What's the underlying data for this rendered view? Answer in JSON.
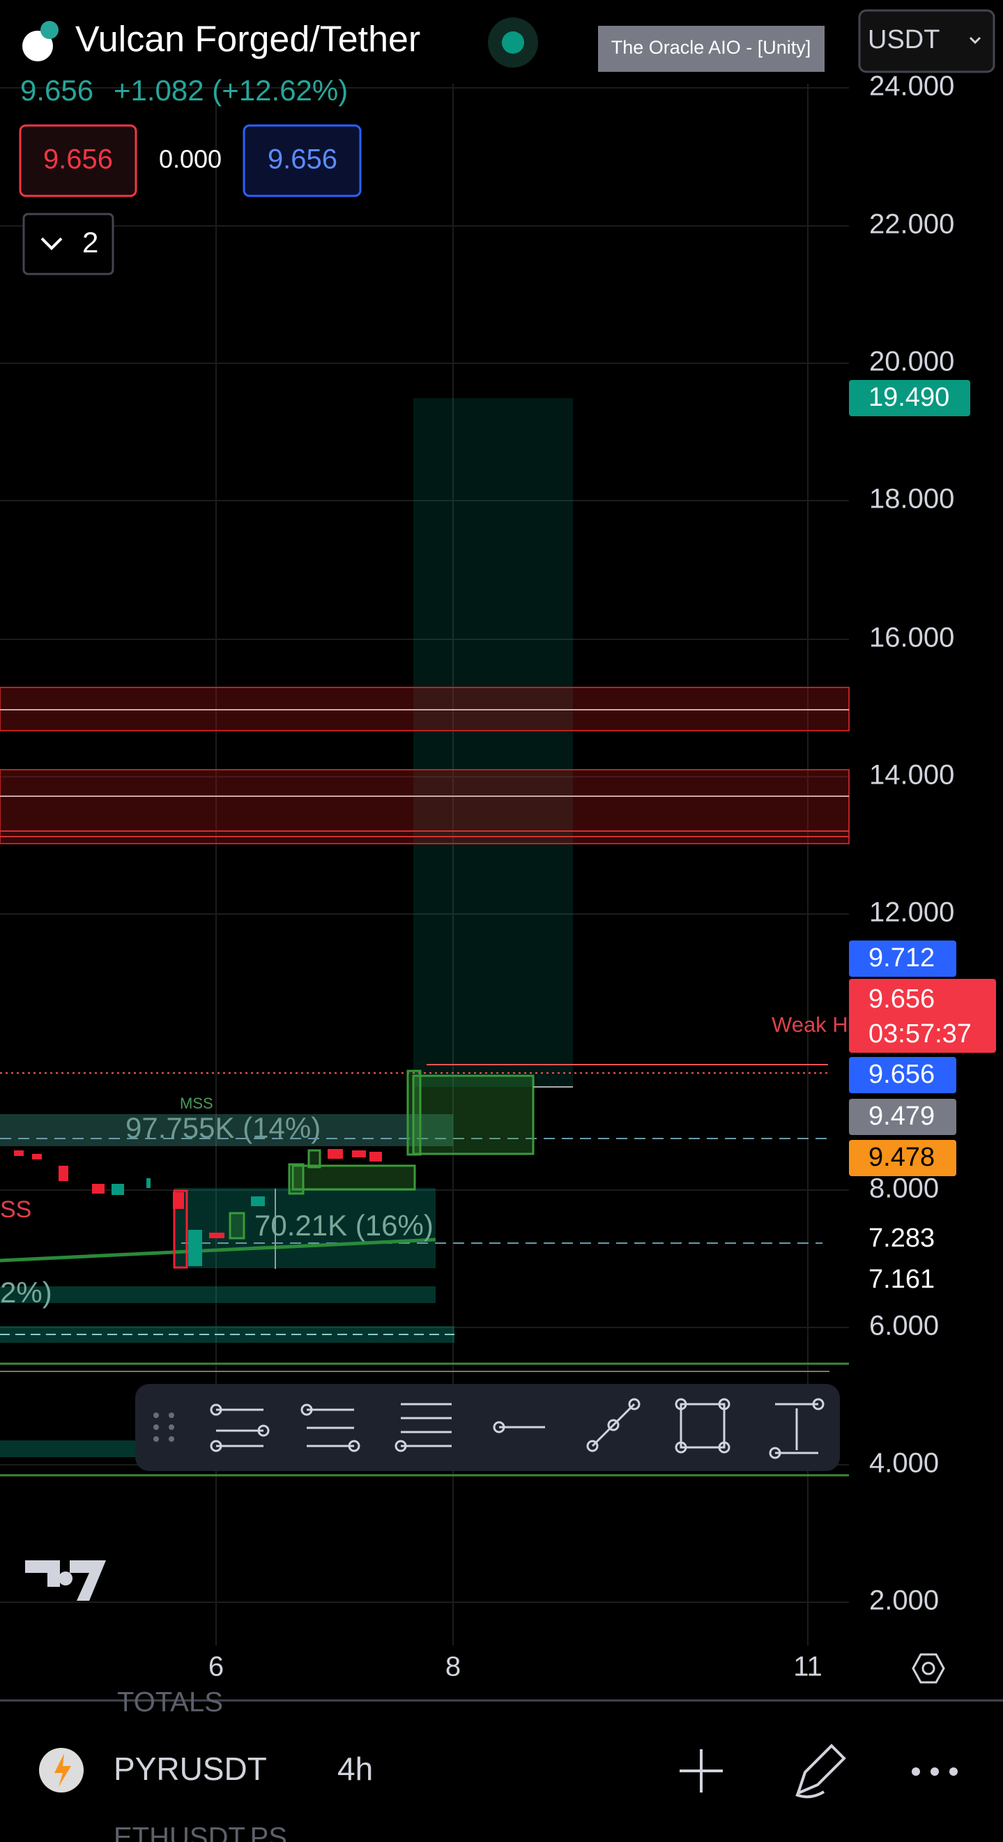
{
  "header": {
    "symbol": "Vulcan Forged/Tether",
    "indicator_badge": "The Oracle AIO - [Unity]",
    "currency": "USDT",
    "last_price": "9.656",
    "change": "+1.082 (+12.62%)"
  },
  "order_buttons": {
    "sell": "9.656",
    "spread": "0.000",
    "buy": "9.656"
  },
  "collapse_count": "2",
  "price_axis": [
    "24.000",
    "22.000",
    "20.000",
    "18.000",
    "16.000",
    "14.000",
    "12.000",
    "8.000",
    "6.000",
    "4.000",
    "2.000"
  ],
  "price_tags": {
    "target": "19.490",
    "blue_upper": "9.712",
    "last": "9.656",
    "countdown": "03:57:37",
    "blue_lower": "9.656",
    "gray": "9.479",
    "orange": "9.478",
    "level_a": "7.283",
    "level_b": "7.161"
  },
  "time_axis": [
    "6",
    "8",
    "11"
  ],
  "annotations": {
    "mss": "MSS",
    "volume_upper": "97.755K (14%)",
    "volume_lower": "70.21K (16%)",
    "weak_high": "Weak H",
    "ss": "SS",
    "percent_partial": "2%)"
  },
  "bottom_bar": {
    "symbol": "PYRUSDT",
    "interval": "4h",
    "list_above": "TOTALS",
    "list_below": "ETHUSDT.PS"
  }
}
